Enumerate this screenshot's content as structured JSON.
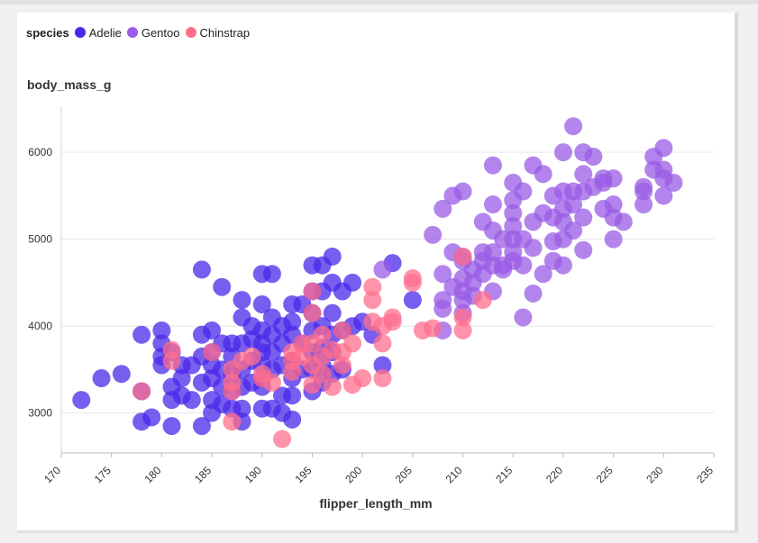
{
  "legend": {
    "title": "species",
    "items": [
      {
        "label": "Adelie",
        "color": "#4a28e8"
      },
      {
        "label": "Gentoo",
        "color": "#9a5ce6"
      },
      {
        "label": "Chinstrap",
        "color": "#ff6f8c"
      }
    ]
  },
  "chart_data": {
    "type": "scatter",
    "xlabel": "flipper_length_mm",
    "ylabel": "body_mass_g",
    "xlim": [
      170,
      235
    ],
    "ylim": [
      2540,
      6530
    ],
    "xticks": [
      170,
      175,
      180,
      185,
      190,
      195,
      200,
      205,
      210,
      215,
      220,
      225,
      230,
      235
    ],
    "yticks": [
      3000,
      4000,
      5000,
      6000
    ],
    "grid": "horizontal",
    "legend_position": "top-left",
    "series": [
      {
        "name": "Adelie",
        "color": "#4a28e8",
        "points": [
          [
            172,
            3150
          ],
          [
            174,
            3400
          ],
          [
            176,
            3450
          ],
          [
            178,
            3900
          ],
          [
            178,
            2900
          ],
          [
            178,
            3250
          ],
          [
            179,
            2950
          ],
          [
            180,
            3950
          ],
          [
            180,
            3800
          ],
          [
            180,
            3650
          ],
          [
            180,
            3550
          ],
          [
            181,
            3700
          ],
          [
            181,
            3300
          ],
          [
            181,
            3150
          ],
          [
            181,
            2850
          ],
          [
            182,
            3550
          ],
          [
            182,
            3200
          ],
          [
            182,
            3400
          ],
          [
            183,
            3150
          ],
          [
            183,
            3550
          ],
          [
            184,
            3900
          ],
          [
            184,
            3650
          ],
          [
            184,
            3350
          ],
          [
            184,
            2850
          ],
          [
            184,
            4650
          ],
          [
            185,
            3950
          ],
          [
            185,
            3700
          ],
          [
            185,
            3550
          ],
          [
            185,
            3400
          ],
          [
            185,
            3150
          ],
          [
            185,
            3000
          ],
          [
            186,
            4450
          ],
          [
            186,
            3800
          ],
          [
            186,
            3500
          ],
          [
            186,
            3300
          ],
          [
            186,
            3100
          ],
          [
            187,
            3800
          ],
          [
            187,
            3650
          ],
          [
            187,
            3450
          ],
          [
            187,
            3250
          ],
          [
            187,
            3050
          ],
          [
            188,
            4300
          ],
          [
            188,
            4100
          ],
          [
            188,
            3800
          ],
          [
            188,
            3500
          ],
          [
            188,
            3300
          ],
          [
            188,
            3050
          ],
          [
            188,
            2900
          ],
          [
            189,
            4000
          ],
          [
            189,
            3850
          ],
          [
            189,
            3600
          ],
          [
            189,
            3350
          ],
          [
            190,
            4600
          ],
          [
            190,
            4250
          ],
          [
            190,
            3950
          ],
          [
            190,
            3800
          ],
          [
            190,
            3700
          ],
          [
            190,
            3550
          ],
          [
            190,
            3400
          ],
          [
            190,
            3300
          ],
          [
            190,
            3050
          ],
          [
            191,
            4600
          ],
          [
            191,
            4100
          ],
          [
            191,
            3900
          ],
          [
            191,
            3700
          ],
          [
            191,
            3500
          ],
          [
            191,
            3050
          ],
          [
            192,
            4000
          ],
          [
            192,
            3800
          ],
          [
            192,
            3550
          ],
          [
            192,
            3200
          ],
          [
            192,
            3000
          ],
          [
            193,
            4250
          ],
          [
            193,
            4050
          ],
          [
            193,
            3900
          ],
          [
            193,
            3600
          ],
          [
            193,
            3400
          ],
          [
            193,
            3200
          ],
          [
            193,
            2925
          ],
          [
            194,
            4250
          ],
          [
            194,
            3800
          ],
          [
            194,
            3500
          ],
          [
            195,
            4700
          ],
          [
            195,
            4400
          ],
          [
            195,
            4150
          ],
          [
            195,
            3950
          ],
          [
            195,
            3700
          ],
          [
            195,
            3500
          ],
          [
            195,
            3250
          ],
          [
            196,
            4700
          ],
          [
            196,
            4400
          ],
          [
            196,
            4000
          ],
          [
            196,
            3750
          ],
          [
            196,
            3550
          ],
          [
            196,
            3350
          ],
          [
            197,
            4800
          ],
          [
            197,
            4500
          ],
          [
            197,
            4150
          ],
          [
            197,
            3900
          ],
          [
            197,
            3700
          ],
          [
            197,
            3450
          ],
          [
            198,
            4400
          ],
          [
            198,
            3950
          ],
          [
            198,
            3500
          ],
          [
            199,
            4500
          ],
          [
            199,
            4000
          ],
          [
            200,
            4050
          ],
          [
            201,
            3900
          ],
          [
            202,
            3550
          ],
          [
            203,
            4725
          ],
          [
            205,
            4300
          ]
        ]
      },
      {
        "name": "Gentoo",
        "color": "#9a5ce6",
        "points": [
          [
            202,
            4650
          ],
          [
            207,
            5050
          ],
          [
            208,
            4300
          ],
          [
            208,
            4200
          ],
          [
            208,
            3950
          ],
          [
            208,
            4600
          ],
          [
            208,
            5350
          ],
          [
            209,
            4850
          ],
          [
            209,
            4450
          ],
          [
            209,
            5500
          ],
          [
            210,
            4750
          ],
          [
            210,
            4550
          ],
          [
            210,
            4400
          ],
          [
            210,
            4300
          ],
          [
            210,
            4150
          ],
          [
            210,
            4800
          ],
          [
            210,
            5550
          ],
          [
            211,
            4650
          ],
          [
            211,
            4500
          ],
          [
            211,
            4350
          ],
          [
            212,
            5200
          ],
          [
            212,
            4850
          ],
          [
            212,
            4600
          ],
          [
            212,
            4750
          ],
          [
            213,
            5400
          ],
          [
            213,
            5100
          ],
          [
            213,
            4850
          ],
          [
            213,
            4700
          ],
          [
            213,
            4400
          ],
          [
            213,
            5850
          ],
          [
            214,
            5000
          ],
          [
            214,
            4700
          ],
          [
            214,
            4650
          ],
          [
            215,
            5650
          ],
          [
            215,
            5450
          ],
          [
            215,
            5300
          ],
          [
            215,
            5150
          ],
          [
            215,
            5000
          ],
          [
            215,
            4850
          ],
          [
            215,
            4750
          ],
          [
            216,
            5550
          ],
          [
            216,
            5000
          ],
          [
            216,
            4700
          ],
          [
            216,
            4100
          ],
          [
            217,
            5850
          ],
          [
            217,
            5200
          ],
          [
            217,
            4900
          ],
          [
            217,
            4375
          ],
          [
            218,
            5750
          ],
          [
            218,
            5300
          ],
          [
            218,
            4600
          ],
          [
            219,
            5500
          ],
          [
            219,
            5250
          ],
          [
            219,
            4975
          ],
          [
            219,
            4750
          ],
          [
            220,
            6000
          ],
          [
            220,
            5550
          ],
          [
            220,
            5350
          ],
          [
            220,
            5200
          ],
          [
            220,
            5000
          ],
          [
            220,
            4700
          ],
          [
            221,
            6300
          ],
          [
            221,
            5550
          ],
          [
            221,
            5400
          ],
          [
            221,
            5100
          ],
          [
            222,
            6000
          ],
          [
            222,
            5750
          ],
          [
            222,
            5550
          ],
          [
            222,
            5250
          ],
          [
            222,
            4875
          ],
          [
            223,
            5950
          ],
          [
            223,
            5600
          ],
          [
            224,
            5650
          ],
          [
            224,
            5350
          ],
          [
            224,
            5700
          ],
          [
            225,
            5700
          ],
          [
            225,
            5400
          ],
          [
            225,
            5250
          ],
          [
            225,
            5000
          ],
          [
            226,
            5200
          ],
          [
            228,
            5600
          ],
          [
            228,
            5400
          ],
          [
            228,
            5550
          ],
          [
            229,
            5950
          ],
          [
            229,
            5800
          ],
          [
            230,
            6050
          ],
          [
            230,
            5800
          ],
          [
            230,
            5700
          ],
          [
            230,
            5500
          ],
          [
            231,
            5650
          ]
        ]
      },
      {
        "name": "Chinstrap",
        "color": "#ff6f8c",
        "points": [
          [
            178,
            3250
          ],
          [
            181,
            3725
          ],
          [
            181,
            3600
          ],
          [
            185,
            3700
          ],
          [
            187,
            3500
          ],
          [
            187,
            3350
          ],
          [
            187,
            3250
          ],
          [
            187,
            2900
          ],
          [
            188,
            3600
          ],
          [
            189,
            3650
          ],
          [
            190,
            3450
          ],
          [
            190,
            3400
          ],
          [
            191,
            3350
          ],
          [
            192,
            2700
          ],
          [
            193,
            3700
          ],
          [
            193,
            3600
          ],
          [
            193,
            3475
          ],
          [
            194,
            3800
          ],
          [
            194,
            3650
          ],
          [
            195,
            4400
          ],
          [
            195,
            4150
          ],
          [
            195,
            3800
          ],
          [
            195,
            3550
          ],
          [
            195,
            3325
          ],
          [
            196,
            3900
          ],
          [
            196,
            3650
          ],
          [
            196,
            3450
          ],
          [
            197,
            3725
          ],
          [
            197,
            3300
          ],
          [
            198,
            3950
          ],
          [
            198,
            3700
          ],
          [
            198,
            3550
          ],
          [
            199,
            3800
          ],
          [
            199,
            3325
          ],
          [
            200,
            3400
          ],
          [
            201,
            4450
          ],
          [
            201,
            4300
          ],
          [
            201,
            4050
          ],
          [
            202,
            3400
          ],
          [
            202,
            4000
          ],
          [
            202,
            3800
          ],
          [
            203,
            4050
          ],
          [
            203,
            4100
          ],
          [
            205,
            4500
          ],
          [
            205,
            4550
          ],
          [
            206,
            3950
          ],
          [
            207,
            3975
          ],
          [
            210,
            4800
          ],
          [
            210,
            4100
          ],
          [
            210,
            3950
          ],
          [
            212,
            4300
          ]
        ]
      }
    ]
  }
}
